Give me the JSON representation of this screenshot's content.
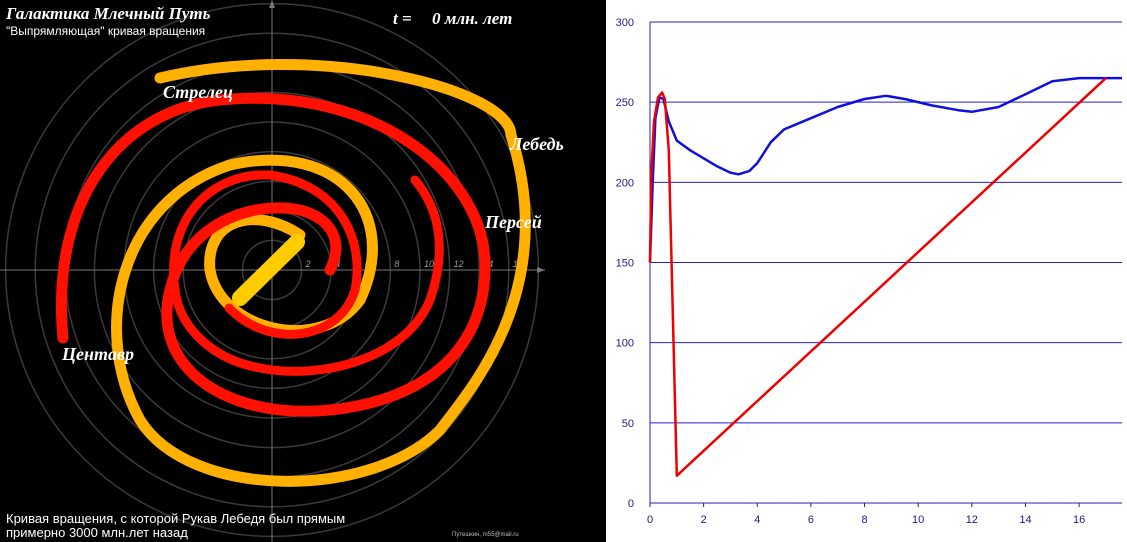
{
  "galaxy": {
    "title": "Галактика Млечный Путь",
    "subtitle": "\"Выпрямляющая\" кривая вращения",
    "time_label": "t =",
    "time_value": "0 млн. лет",
    "arm_labels": {
      "sagittarius": "Стрелец",
      "cygnus": "Лебедь",
      "perseus": "Персей",
      "centaurus": "Центавр"
    },
    "ring_ticks": [
      "2",
      "4",
      "6",
      "8",
      "10",
      "12",
      "14",
      "16"
    ],
    "footer_line1": "Кривая вращения, с которой Рукав Лебедя был прямым",
    "footer_line2": "примерно 3000 млн.лет назад",
    "credit": "Путешкин, m55@mail.ru",
    "colors": {
      "orange_arm": "#ffb000",
      "red_arm": "#ff1000",
      "bar": "#ffcc00"
    }
  },
  "chart_data": {
    "type": "line",
    "xlim": [
      0,
      17.6
    ],
    "ylim": [
      0,
      300
    ],
    "x_ticks": [
      0,
      2,
      4,
      6,
      8,
      10,
      12,
      14,
      16
    ],
    "y_ticks": [
      0,
      50,
      100,
      150,
      200,
      250,
      300
    ],
    "grid": "horizontal",
    "series": [
      {
        "color": "#1010dd",
        "x": [
          0,
          0.1,
          0.2,
          0.35,
          0.5,
          0.7,
          1.0,
          1.5,
          2.0,
          2.5,
          3.0,
          3.3,
          3.7,
          4.0,
          4.5,
          5.0,
          6.0,
          7.0,
          8.0,
          8.8,
          9.5,
          10.5,
          11.5,
          12.0,
          13.0,
          14.0,
          15.0,
          16.0,
          17.0,
          17.6
        ],
        "y": [
          150,
          200,
          240,
          253,
          252,
          238,
          226,
          220,
          215,
          210,
          206,
          205,
          207,
          212,
          225,
          233,
          240,
          247,
          252,
          254,
          252,
          248,
          245,
          244,
          247,
          255,
          263,
          265,
          265,
          265
        ]
      },
      {
        "color": "#ee0000",
        "x": [
          0,
          0.05,
          0.15,
          0.3,
          0.45,
          0.55,
          0.7,
          1.0,
          17.0
        ],
        "y": [
          150,
          205,
          238,
          253,
          256,
          252,
          220,
          17,
          265
        ]
      }
    ]
  }
}
